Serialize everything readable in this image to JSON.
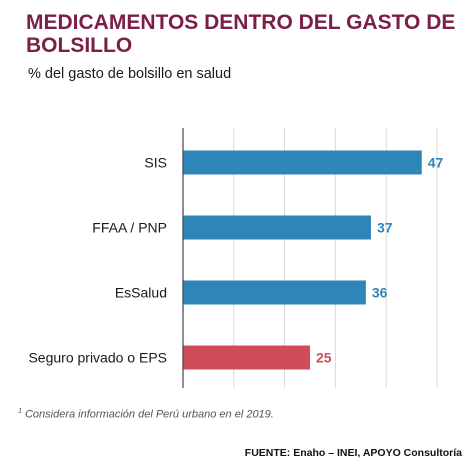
{
  "header": {
    "title": "MEDICAMENTOS DENTRO DEL GASTO DE BOLSILLO",
    "subtitle": "% del gasto de bolsillo en salud"
  },
  "chart_data": {
    "type": "bar",
    "orientation": "horizontal",
    "categories": [
      "SIS",
      "FFAA / PNP",
      "EsSalud",
      "Seguro privado o EPS"
    ],
    "values": [
      47,
      37,
      36,
      25
    ],
    "bar_colors": [
      "#2e86b8",
      "#2e86b8",
      "#2e86b8",
      "#cf4b57"
    ],
    "label_colors": [
      "#2e86b8",
      "#2e86b8",
      "#2e86b8",
      "#cf4b57"
    ],
    "xlim": [
      0,
      50
    ],
    "grid": true,
    "data_labels": true
  },
  "footer": {
    "footnote_mark": "1",
    "footnote": "Considera información del Perú urbano en el 2019.",
    "source": "FUENTE: Enaho – INEI, APOYO Consultoría"
  }
}
